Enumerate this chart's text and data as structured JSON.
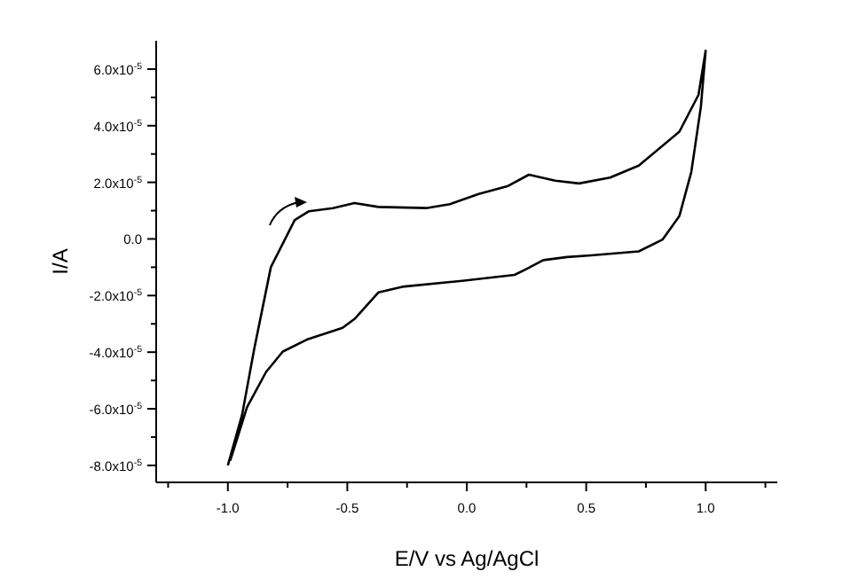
{
  "chart_data": {
    "type": "line",
    "xlabel": "E/V vs Ag/AgCl",
    "ylabel": "I/A",
    "xlim": [
      -1.3,
      1.3
    ],
    "ylim": [
      -8.6e-05,
      7e-05
    ],
    "xticks": [
      {
        "value": -1.25,
        "label": null
      },
      {
        "value": -1,
        "label": "-1.0"
      },
      {
        "value": -0.75,
        "label": null
      },
      {
        "value": -0.5,
        "label": "-0.5"
      },
      {
        "value": -0.25,
        "label": null
      },
      {
        "value": 0,
        "label": "0.0"
      },
      {
        "value": 0.25,
        "label": null
      },
      {
        "value": 0.5,
        "label": "0.5"
      },
      {
        "value": 0.75,
        "label": null
      },
      {
        "value": 1,
        "label": "1.0"
      },
      {
        "value": 1.25,
        "label": null
      }
    ],
    "yticks": [
      {
        "value": -8e-05,
        "label": "-8.0x10$^{-5}$"
      },
      {
        "value": -7e-05,
        "label": null
      },
      {
        "value": -6e-05,
        "label": "-6.0x10$^{-5}$"
      },
      {
        "value": -5e-05,
        "label": null
      },
      {
        "value": -4e-05,
        "label": "-4.0x10$^{-5}$"
      },
      {
        "value": -3e-05,
        "label": null
      },
      {
        "value": -2e-05,
        "label": "-2.0x10$^{-5}$"
      },
      {
        "value": -1e-05,
        "label": null
      },
      {
        "value": 0,
        "label": "0.0"
      },
      {
        "value": 1e-05,
        "label": null
      },
      {
        "value": 2e-05,
        "label": "2.0x10$^{-5}$"
      },
      {
        "value": 3e-05,
        "label": null
      },
      {
        "value": 4e-05,
        "label": "4.0x10$^{-5}$"
      },
      {
        "value": 5e-05,
        "label": null
      },
      {
        "value": 6e-05,
        "label": "6.0x10$^{-5}$"
      }
    ],
    "grid": false,
    "marker": "none",
    "line_style": "solid",
    "series": [
      {
        "color": "#000000",
        "x": [
          -1.0,
          -0.94,
          -0.89,
          -0.82,
          -0.72,
          -0.66,
          -0.56,
          -0.47,
          -0.37,
          -0.17,
          -0.07,
          0.05,
          0.17,
          0.26,
          0.37,
          0.47,
          0.6,
          0.72,
          0.89,
          0.97,
          1.0,
          0.98,
          0.94,
          0.89,
          0.82,
          0.72,
          0.52,
          0.42,
          0.32,
          0.25,
          0.2,
          -0.02,
          -0.27,
          -0.37,
          -0.47,
          -0.52,
          -0.67,
          -0.77,
          -0.84,
          -0.92,
          -0.99
        ],
        "values": [
          -8e-05,
          -6.2e-05,
          -3.9e-05,
          -1e-05,
          6.7e-06,
          9.8e-06,
          1.09e-05,
          1.27e-05,
          1.13e-05,
          1.09e-05,
          1.23e-05,
          1.59e-05,
          1.86e-05,
          2.27e-05,
          2.06e-05,
          1.96e-05,
          2.17e-05,
          2.59e-05,
          3.79e-05,
          5.09e-05,
          6.65e-05,
          4.67e-05,
          2.37e-05,
          8.1e-06,
          -2e-07,
          -4.4e-06,
          -5.8e-06,
          -6.4e-06,
          -7.5e-06,
          -1.06e-05,
          -1.27e-05,
          -1.48e-05,
          -1.69e-05,
          -1.89e-05,
          -2.83e-05,
          -3.14e-05,
          -3.56e-05,
          -3.98e-05,
          -4.7e-05,
          -5.95e-05,
          -7.83e-05
        ]
      }
    ]
  }
}
